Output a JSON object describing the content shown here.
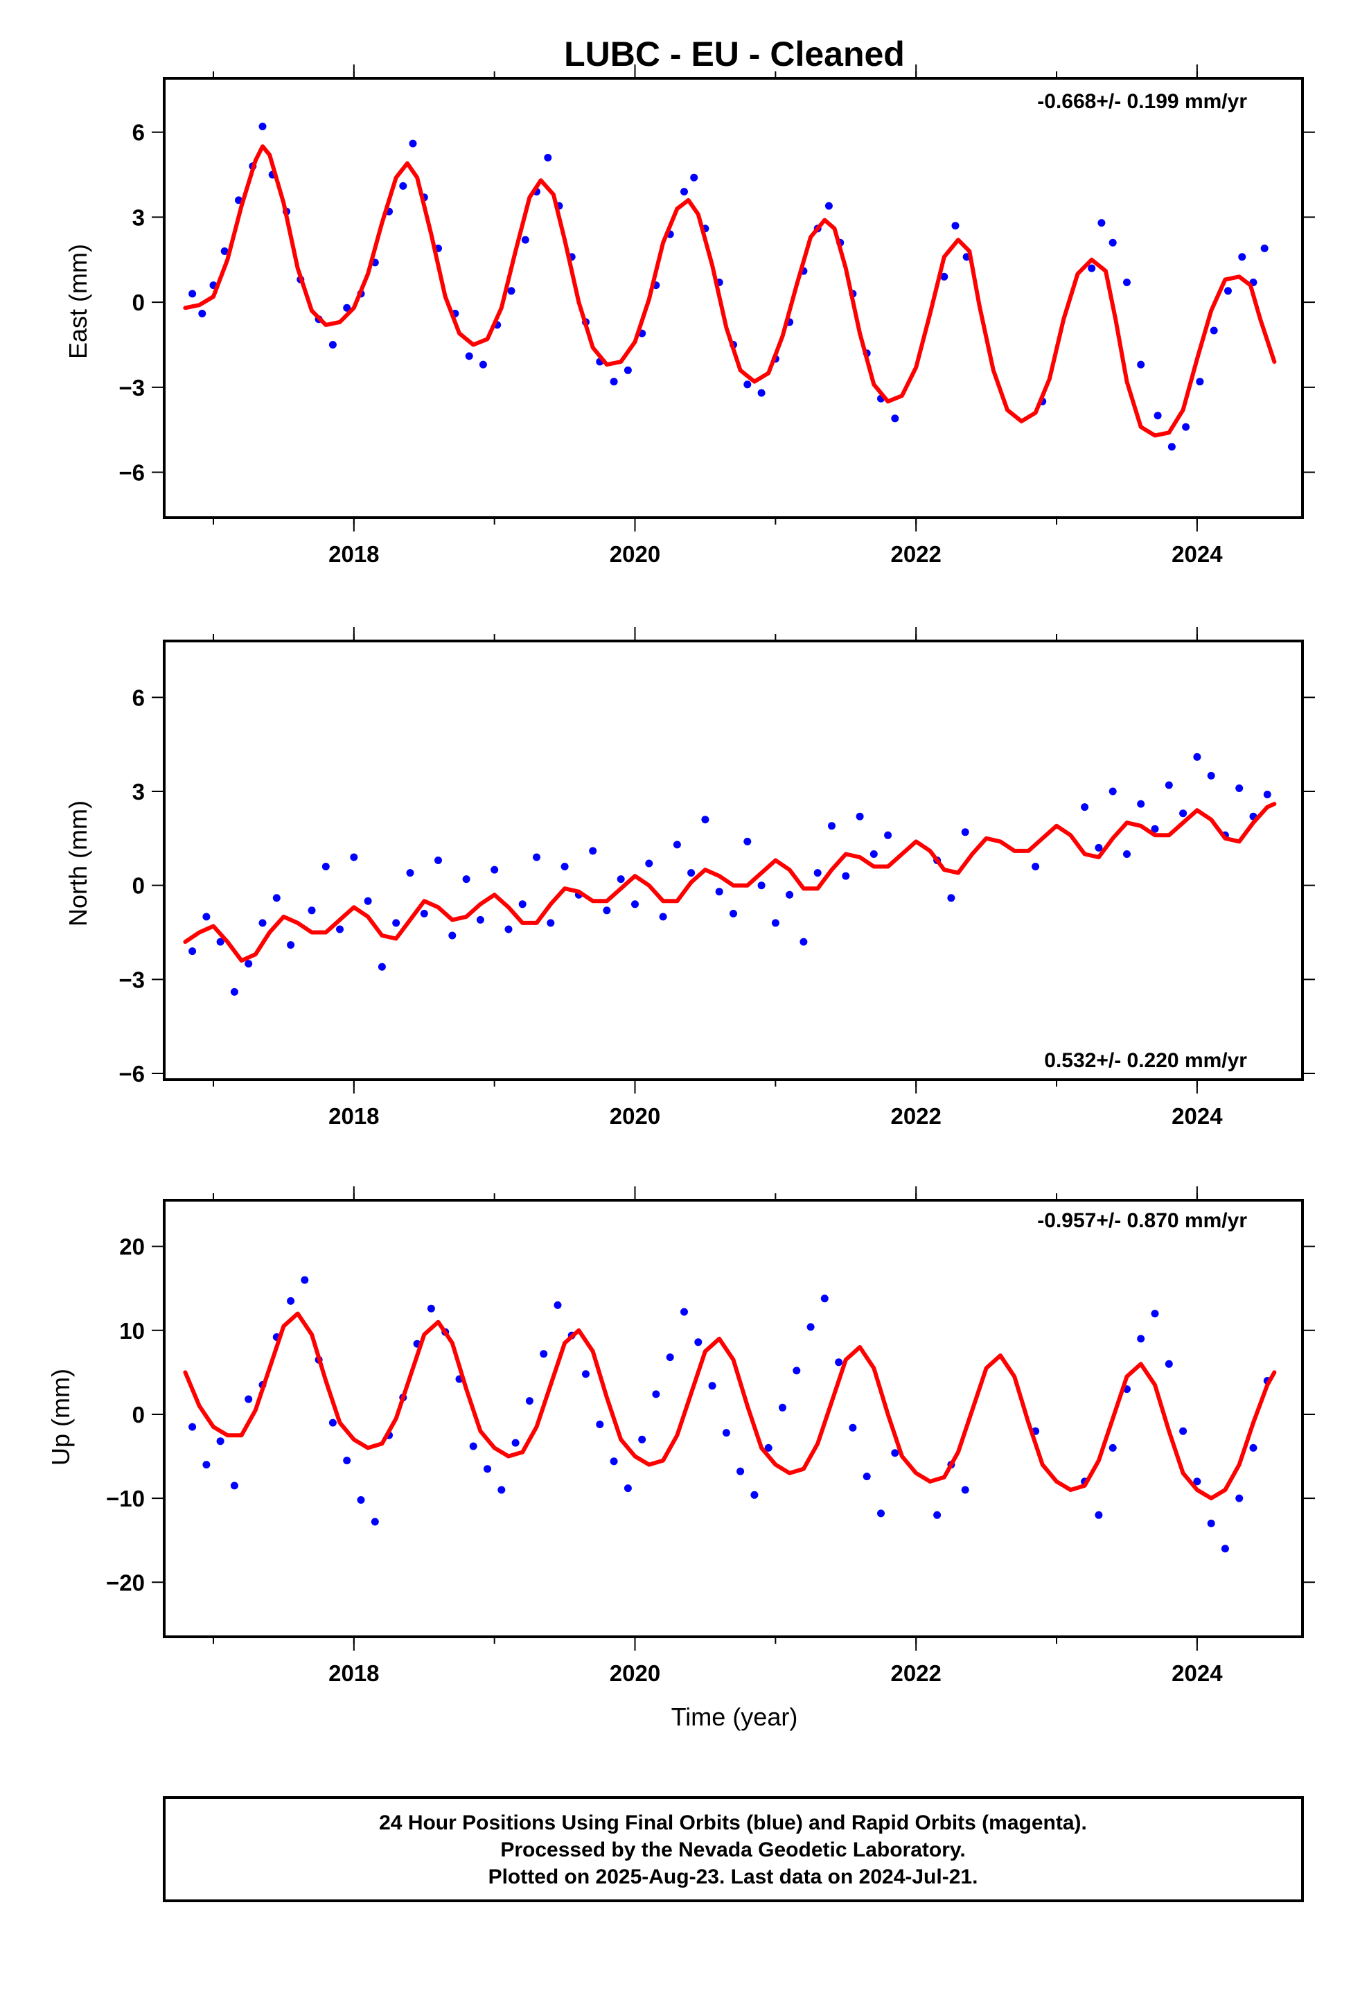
{
  "title": "LUBC  - EU - Cleaned",
  "xlabel": "Time (year)",
  "footer": {
    "lines": [
      "24 Hour Positions Using Final Orbits (blue) and Rapid Orbits (magenta).",
      "Processed by the Nevada Geodetic Laboratory.",
      "Plotted on 2025-Aug-23. Last data on 2024-Jul-21."
    ]
  },
  "colors": {
    "observations": "#0000ff",
    "model": "#ff0000",
    "axes": "#000000",
    "background": "#ffffff"
  },
  "chart_data": [
    {
      "type": "scatter",
      "panel": "east",
      "ylabel": "East (mm)",
      "rate_text": "-0.668+/- 0.199 mm/yr",
      "rate_position": "top-right",
      "xlim": [
        2016.65,
        2024.75
      ],
      "ylim": [
        -7.6,
        7.9
      ],
      "yticks": [
        6,
        3,
        0,
        -3,
        -6
      ],
      "yticklabels": [
        "6",
        "3",
        "0",
        "−3",
        "−6"
      ],
      "xticks": [
        2018,
        2020,
        2022,
        2024
      ],
      "xticklabels": [
        "2018",
        "2020",
        "2022",
        "2024"
      ],
      "model": {
        "name": "seasonal fit",
        "x": [
          2016.8,
          2016.9,
          2017.0,
          2017.1,
          2017.2,
          2017.3,
          2017.35,
          2017.4,
          2017.5,
          2017.6,
          2017.7,
          2017.8,
          2017.9,
          2018.0,
          2018.1,
          2018.2,
          2018.3,
          2018.38,
          2018.45,
          2018.55,
          2018.65,
          2018.75,
          2018.85,
          2018.95,
          2019.05,
          2019.15,
          2019.25,
          2019.33,
          2019.42,
          2019.5,
          2019.6,
          2019.7,
          2019.8,
          2019.9,
          2020.0,
          2020.1,
          2020.2,
          2020.3,
          2020.38,
          2020.45,
          2020.55,
          2020.65,
          2020.75,
          2020.85,
          2020.95,
          2021.05,
          2021.15,
          2021.25,
          2021.35,
          2021.42,
          2021.5,
          2021.6,
          2021.7,
          2021.8,
          2021.9,
          2022.0,
          2022.1,
          2022.2,
          2022.3,
          2022.38,
          2022.45,
          2022.55,
          2022.65,
          2022.75,
          2022.85,
          2022.95,
          2023.05,
          2023.15,
          2023.25,
          2023.35,
          2023.42,
          2023.5,
          2023.6,
          2023.7,
          2023.8,
          2023.9,
          2024.0,
          2024.1,
          2024.2,
          2024.3,
          2024.38,
          2024.45,
          2024.55
        ],
        "y": [
          -0.2,
          -0.1,
          0.2,
          1.5,
          3.4,
          5.0,
          5.5,
          5.2,
          3.5,
          1.2,
          -0.3,
          -0.8,
          -0.7,
          -0.2,
          1.0,
          2.8,
          4.4,
          4.9,
          4.4,
          2.4,
          0.2,
          -1.1,
          -1.5,
          -1.3,
          -0.2,
          1.8,
          3.7,
          4.3,
          3.8,
          2.2,
          0.0,
          -1.6,
          -2.2,
          -2.1,
          -1.4,
          0.1,
          2.1,
          3.3,
          3.6,
          3.1,
          1.3,
          -0.9,
          -2.4,
          -2.8,
          -2.5,
          -1.2,
          0.6,
          2.3,
          2.9,
          2.6,
          1.2,
          -1.1,
          -2.9,
          -3.5,
          -3.3,
          -2.3,
          -0.4,
          1.6,
          2.2,
          1.8,
          -0.1,
          -2.4,
          -3.8,
          -4.2,
          -3.9,
          -2.7,
          -0.6,
          1.0,
          1.5,
          1.1,
          -0.6,
          -2.8,
          -4.4,
          -4.7,
          -4.6,
          -3.8,
          -2.0,
          -0.3,
          0.8,
          0.9,
          0.6,
          -0.6,
          -2.1
        ]
      },
      "observations": {
        "name": "24 hour positions",
        "x": [
          2016.85,
          2016.92,
          2017.0,
          2017.08,
          2017.18,
          2017.28,
          2017.35,
          2017.42,
          2017.52,
          2017.62,
          2017.75,
          2017.85,
          2017.95,
          2018.05,
          2018.15,
          2018.25,
          2018.35,
          2018.42,
          2018.5,
          2018.6,
          2018.72,
          2018.82,
          2018.92,
          2019.02,
          2019.12,
          2019.22,
          2019.3,
          2019.38,
          2019.46,
          2019.55,
          2019.65,
          2019.75,
          2019.85,
          2019.95,
          2020.05,
          2020.15,
          2020.25,
          2020.35,
          2020.42,
          2020.5,
          2020.6,
          2020.7,
          2020.8,
          2020.9,
          2021.0,
          2021.1,
          2021.2,
          2021.3,
          2021.38,
          2021.46,
          2021.55,
          2021.65,
          2021.75,
          2021.85,
          2022.2,
          2022.28,
          2022.36,
          2022.9,
          2023.25,
          2023.32,
          2023.4,
          2023.5,
          2023.6,
          2023.72,
          2023.82,
          2023.92,
          2024.02,
          2024.12,
          2024.22,
          2024.32,
          2024.4,
          2024.48
        ],
        "y": [
          0.3,
          -0.4,
          0.6,
          1.8,
          3.6,
          4.8,
          6.2,
          4.5,
          3.2,
          0.8,
          -0.6,
          -1.5,
          -0.2,
          0.3,
          1.4,
          3.2,
          4.1,
          5.6,
          3.7,
          1.9,
          -0.4,
          -1.9,
          -2.2,
          -0.8,
          0.4,
          2.2,
          3.9,
          5.1,
          3.4,
          1.6,
          -0.7,
          -2.1,
          -2.8,
          -2.4,
          -1.1,
          0.6,
          2.4,
          3.9,
          4.4,
          2.6,
          0.7,
          -1.5,
          -2.9,
          -3.2,
          -2.0,
          -0.7,
          1.1,
          2.6,
          3.4,
          2.1,
          0.3,
          -1.8,
          -3.4,
          -4.1,
          0.9,
          2.7,
          1.6,
          -3.5,
          1.2,
          2.8,
          2.1,
          0.7,
          -2.2,
          -4.0,
          -5.1,
          -4.4,
          -2.8,
          -1.0,
          0.4,
          1.6,
          0.7,
          1.9
        ]
      }
    },
    {
      "type": "scatter",
      "panel": "north",
      "ylabel": "North (mm)",
      "rate_text": "0.532+/- 0.220 mm/yr",
      "rate_position": "bottom-right",
      "xlim": [
        2016.65,
        2024.75
      ],
      "ylim": [
        -6.2,
        7.8
      ],
      "yticks": [
        6,
        3,
        0,
        -3,
        -6
      ],
      "yticklabels": [
        "6",
        "3",
        "0",
        "−3",
        "−6"
      ],
      "xticks": [
        2018,
        2020,
        2022,
        2024
      ],
      "xticklabels": [
        "2018",
        "2020",
        "2022",
        "2024"
      ],
      "model": {
        "name": "seasonal fit",
        "x": [
          2016.8,
          2016.9,
          2017.0,
          2017.1,
          2017.2,
          2017.3,
          2017.4,
          2017.5,
          2017.6,
          2017.7,
          2017.8,
          2017.9,
          2018.0,
          2018.1,
          2018.2,
          2018.3,
          2018.4,
          2018.5,
          2018.6,
          2018.7,
          2018.8,
          2018.9,
          2019.0,
          2019.1,
          2019.2,
          2019.3,
          2019.4,
          2019.5,
          2019.6,
          2019.7,
          2019.8,
          2019.9,
          2020.0,
          2020.1,
          2020.2,
          2020.3,
          2020.4,
          2020.5,
          2020.6,
          2020.7,
          2020.8,
          2020.9,
          2021.0,
          2021.1,
          2021.2,
          2021.3,
          2021.4,
          2021.5,
          2021.6,
          2021.7,
          2021.8,
          2021.9,
          2022.0,
          2022.1,
          2022.2,
          2022.3,
          2022.4,
          2022.5,
          2022.6,
          2022.7,
          2022.8,
          2022.9,
          2023.0,
          2023.1,
          2023.2,
          2023.3,
          2023.4,
          2023.5,
          2023.6,
          2023.7,
          2023.8,
          2023.9,
          2024.0,
          2024.1,
          2024.2,
          2024.3,
          2024.4,
          2024.5,
          2024.55
        ],
        "y": [
          -1.8,
          -1.5,
          -1.3,
          -1.8,
          -2.4,
          -2.2,
          -1.5,
          -1.0,
          -1.2,
          -1.5,
          -1.5,
          -1.1,
          -0.7,
          -1.0,
          -1.6,
          -1.7,
          -1.1,
          -0.5,
          -0.7,
          -1.1,
          -1.0,
          -0.6,
          -0.3,
          -0.7,
          -1.2,
          -1.2,
          -0.6,
          -0.1,
          -0.2,
          -0.5,
          -0.5,
          -0.1,
          0.3,
          0.0,
          -0.5,
          -0.5,
          0.1,
          0.5,
          0.3,
          0.0,
          0.0,
          0.4,
          0.8,
          0.5,
          -0.1,
          -0.1,
          0.5,
          1.0,
          0.9,
          0.6,
          0.6,
          1.0,
          1.4,
          1.1,
          0.5,
          0.4,
          1.0,
          1.5,
          1.4,
          1.1,
          1.1,
          1.5,
          1.9,
          1.6,
          1.0,
          0.9,
          1.5,
          2.0,
          1.9,
          1.6,
          1.6,
          2.0,
          2.4,
          2.1,
          1.5,
          1.4,
          2.0,
          2.5,
          2.6
        ]
      },
      "observations": {
        "name": "24 hour positions",
        "x": [
          2016.85,
          2016.95,
          2017.05,
          2017.15,
          2017.25,
          2017.35,
          2017.45,
          2017.55,
          2017.7,
          2017.8,
          2017.9,
          2018.0,
          2018.1,
          2018.2,
          2018.3,
          2018.4,
          2018.5,
          2018.6,
          2018.7,
          2018.8,
          2018.9,
          2019.0,
          2019.1,
          2019.2,
          2019.3,
          2019.4,
          2019.5,
          2019.6,
          2019.7,
          2019.8,
          2019.9,
          2020.0,
          2020.1,
          2020.2,
          2020.3,
          2020.4,
          2020.5,
          2020.6,
          2020.7,
          2020.8,
          2020.9,
          2021.0,
          2021.1,
          2021.2,
          2021.3,
          2021.4,
          2021.5,
          2021.6,
          2021.7,
          2021.8,
          2022.15,
          2022.25,
          2022.35,
          2022.85,
          2023.2,
          2023.3,
          2023.4,
          2023.5,
          2023.6,
          2023.7,
          2023.8,
          2023.9,
          2024.0,
          2024.1,
          2024.2,
          2024.3,
          2024.4,
          2024.5
        ],
        "y": [
          -2.1,
          -1.0,
          -1.8,
          -3.4,
          -2.5,
          -1.2,
          -0.4,
          -1.9,
          -0.8,
          0.6,
          -1.4,
          0.9,
          -0.5,
          -2.6,
          -1.2,
          0.4,
          -0.9,
          0.8,
          -1.6,
          0.2,
          -1.1,
          0.5,
          -1.4,
          -0.6,
          0.9,
          -1.2,
          0.6,
          -0.3,
          1.1,
          -0.8,
          0.2,
          -0.6,
          0.7,
          -1.0,
          1.3,
          0.4,
          2.1,
          -0.2,
          -0.9,
          1.4,
          0.0,
          -1.2,
          -0.3,
          -1.8,
          0.4,
          1.9,
          0.3,
          2.2,
          1.0,
          1.6,
          0.8,
          -0.4,
          1.7,
          0.6,
          2.5,
          1.2,
          3.0,
          1.0,
          2.6,
          1.8,
          3.2,
          2.3,
          4.1,
          3.5,
          1.6,
          3.1,
          2.2,
          2.9
        ]
      }
    },
    {
      "type": "scatter",
      "panel": "up",
      "ylabel": "Up (mm)",
      "rate_text": "-0.957+/- 0.870 mm/yr",
      "rate_position": "top-right",
      "xlim": [
        2016.65,
        2024.75
      ],
      "ylim": [
        -26.5,
        25.5
      ],
      "yticks": [
        20,
        10,
        0,
        -10,
        -20
      ],
      "yticklabels": [
        "20",
        "10",
        "0",
        "−10",
        "−20"
      ],
      "xticks": [
        2018,
        2020,
        2022,
        2024
      ],
      "xticklabels": [
        "2018",
        "2020",
        "2022",
        "2024"
      ],
      "model": {
        "name": "seasonal fit",
        "x": [
          2016.8,
          2016.9,
          2017.0,
          2017.1,
          2017.2,
          2017.3,
          2017.4,
          2017.5,
          2017.6,
          2017.7,
          2017.8,
          2017.9,
          2018.0,
          2018.1,
          2018.2,
          2018.3,
          2018.4,
          2018.5,
          2018.6,
          2018.7,
          2018.8,
          2018.9,
          2019.0,
          2019.1,
          2019.2,
          2019.3,
          2019.4,
          2019.5,
          2019.6,
          2019.7,
          2019.8,
          2019.9,
          2020.0,
          2020.1,
          2020.2,
          2020.3,
          2020.4,
          2020.5,
          2020.6,
          2020.7,
          2020.8,
          2020.9,
          2021.0,
          2021.1,
          2021.2,
          2021.3,
          2021.4,
          2021.5,
          2021.6,
          2021.7,
          2021.8,
          2021.9,
          2022.0,
          2022.1,
          2022.2,
          2022.3,
          2022.4,
          2022.5,
          2022.6,
          2022.7,
          2022.8,
          2022.9,
          2023.0,
          2023.1,
          2023.2,
          2023.3,
          2023.4,
          2023.5,
          2023.6,
          2023.7,
          2023.8,
          2023.9,
          2024.0,
          2024.1,
          2024.2,
          2024.3,
          2024.4,
          2024.5,
          2024.55
        ],
        "y": [
          5.0,
          1.0,
          -1.5,
          -2.5,
          -2.5,
          0.5,
          5.5,
          10.5,
          12.0,
          9.5,
          4.0,
          -1.0,
          -3.0,
          -4.0,
          -3.5,
          -0.5,
          4.5,
          9.5,
          11.0,
          8.5,
          3.0,
          -2.0,
          -4.0,
          -5.0,
          -4.5,
          -1.5,
          3.5,
          8.5,
          10.0,
          7.5,
          2.0,
          -3.0,
          -5.0,
          -6.0,
          -5.5,
          -2.5,
          2.5,
          7.5,
          9.0,
          6.5,
          1.0,
          -4.0,
          -6.0,
          -7.0,
          -6.5,
          -3.5,
          1.5,
          6.5,
          8.0,
          5.5,
          0.0,
          -5.0,
          -7.0,
          -8.0,
          -7.5,
          -4.5,
          0.5,
          5.5,
          7.0,
          4.5,
          -1.0,
          -6.0,
          -8.0,
          -9.0,
          -8.5,
          -5.5,
          -0.5,
          4.5,
          6.0,
          3.5,
          -2.0,
          -7.0,
          -9.0,
          -10.0,
          -9.0,
          -6.0,
          -1.0,
          3.5,
          5.0
        ]
      },
      "observations": {
        "name": "24 hour positions",
        "x": [
          2016.85,
          2016.95,
          2017.05,
          2017.15,
          2017.25,
          2017.35,
          2017.45,
          2017.55,
          2017.65,
          2017.75,
          2017.85,
          2017.95,
          2018.05,
          2018.15,
          2018.25,
          2018.35,
          2018.45,
          2018.55,
          2018.65,
          2018.75,
          2018.85,
          2018.95,
          2019.05,
          2019.15,
          2019.25,
          2019.35,
          2019.45,
          2019.55,
          2019.65,
          2019.75,
          2019.85,
          2019.95,
          2020.05,
          2020.15,
          2020.25,
          2020.35,
          2020.45,
          2020.55,
          2020.65,
          2020.75,
          2020.85,
          2020.95,
          2021.05,
          2021.15,
          2021.25,
          2021.35,
          2021.45,
          2021.55,
          2021.65,
          2021.75,
          2021.85,
          2022.15,
          2022.25,
          2022.35,
          2022.85,
          2023.2,
          2023.3,
          2023.4,
          2023.5,
          2023.6,
          2023.7,
          2023.8,
          2023.9,
          2024.0,
          2024.1,
          2024.2,
          2024.3,
          2024.4,
          2024.5
        ],
        "y": [
          -1.5,
          -6.0,
          -3.2,
          -8.5,
          1.8,
          3.5,
          9.2,
          13.5,
          16.0,
          6.5,
          -1.0,
          -5.5,
          -10.2,
          -12.8,
          -2.5,
          2.0,
          8.4,
          12.6,
          9.8,
          4.2,
          -3.8,
          -6.5,
          -9.0,
          -3.4,
          1.6,
          7.2,
          13.0,
          9.4,
          4.8,
          -1.2,
          -5.6,
          -8.8,
          -3.0,
          2.4,
          6.8,
          12.2,
          8.6,
          3.4,
          -2.2,
          -6.8,
          -9.6,
          -4.0,
          0.8,
          5.2,
          10.4,
          13.8,
          6.2,
          -1.6,
          -7.4,
          -11.8,
          -4.6,
          -12.0,
          -6.0,
          -9.0,
          -2.0,
          -8.0,
          -12.0,
          -4.0,
          3.0,
          9.0,
          12.0,
          6.0,
          -2.0,
          -8.0,
          -13.0,
          -16.0,
          -10.0,
          -4.0,
          4.0
        ]
      }
    }
  ]
}
